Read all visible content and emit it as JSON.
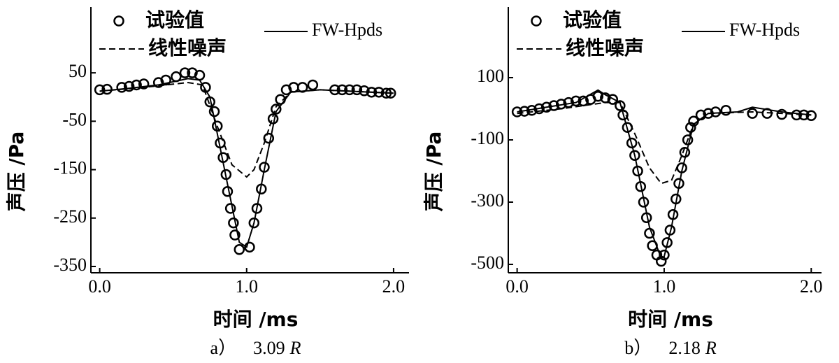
{
  "chart_data": [
    {
      "type": "line",
      "caption": "a）",
      "title": "3.09",
      "title_unit": "R",
      "xlabel": "时间 /ms",
      "ylabel": "声压 /Pa",
      "xlim": [
        -0.06,
        2.105
      ],
      "ylim": [
        -363,
        186
      ],
      "xticks": [
        {
          "value": 0,
          "label": "0.0"
        },
        {
          "value": 1,
          "label": "1.0"
        },
        {
          "value": 2,
          "label": "2.0"
        }
      ],
      "yticks": [
        50,
        -50,
        -150,
        -250,
        -350
      ],
      "series": [
        {
          "name": "试验值",
          "style": "marker",
          "color": "#000",
          "x": [
            0.0,
            0.05,
            0.15,
            0.2,
            0.25,
            0.3,
            0.4,
            0.45,
            0.52,
            0.58,
            0.63,
            0.68,
            0.72,
            0.75,
            0.78,
            0.8,
            0.82,
            0.84,
            0.86,
            0.87,
            0.89,
            0.91,
            0.92,
            0.95,
            1.02,
            1.05,
            1.07,
            1.1,
            1.12,
            1.15,
            1.18,
            1.2,
            1.23,
            1.27,
            1.32,
            1.38,
            1.45,
            1.6,
            1.65,
            1.7,
            1.75,
            1.8,
            1.85,
            1.9,
            1.95,
            1.98
          ],
          "values": [
            15,
            16,
            20,
            22,
            25,
            27,
            30,
            35,
            42,
            50,
            50,
            45,
            20,
            -10,
            -30,
            -60,
            -95,
            -125,
            -160,
            -195,
            -230,
            -260,
            -285,
            -315,
            -310,
            -260,
            -230,
            -190,
            -145,
            -85,
            -45,
            -25,
            -5,
            15,
            20,
            20,
            25,
            15,
            15,
            15,
            15,
            13,
            10,
            10,
            8,
            8
          ]
        },
        {
          "name": "FW-Hpds",
          "style": "solid",
          "color": "#000",
          "x": [
            0,
            0.2,
            0.4,
            0.6,
            0.68,
            0.75,
            0.85,
            0.95,
            1.0,
            1.05,
            1.12,
            1.2,
            1.3,
            1.5,
            1.7,
            2.0
          ],
          "values": [
            12,
            18,
            25,
            38,
            35,
            0,
            -150,
            -300,
            -310,
            -260,
            -150,
            -30,
            10,
            15,
            12,
            8
          ]
        },
        {
          "name": "线性噪声",
          "style": "dashed",
          "color": "#000",
          "x": [
            0,
            0.3,
            0.6,
            0.7,
            0.8,
            0.9,
            1.0,
            1.05,
            1.12,
            1.2,
            1.3,
            1.5,
            2.0
          ],
          "values": [
            12,
            20,
            30,
            25,
            -60,
            -140,
            -165,
            -150,
            -95,
            -20,
            10,
            15,
            8
          ]
        }
      ]
    },
    {
      "type": "line",
      "caption": "b）",
      "title": "2.18",
      "title_unit": "R",
      "xlabel": "时间 /ms",
      "ylabel": "声压 /Pa",
      "xlim": [
        -0.06,
        2.07
      ],
      "ylim": [
        -527,
        327
      ],
      "xticks": [
        {
          "value": 0,
          "label": "0.0"
        },
        {
          "value": 1,
          "label": "1.0"
        },
        {
          "value": 2,
          "label": "2.0"
        }
      ],
      "yticks": [
        100,
        -100,
        -300,
        -500
      ],
      "series": [
        {
          "name": "试验值",
          "style": "marker",
          "color": "#000",
          "x": [
            0,
            0.05,
            0.1,
            0.15,
            0.2,
            0.25,
            0.3,
            0.35,
            0.4,
            0.45,
            0.5,
            0.55,
            0.6,
            0.65,
            0.7,
            0.72,
            0.75,
            0.78,
            0.8,
            0.82,
            0.84,
            0.86,
            0.88,
            0.9,
            0.92,
            0.95,
            0.98,
            1.0,
            1.02,
            1.04,
            1.06,
            1.08,
            1.1,
            1.12,
            1.14,
            1.16,
            1.18,
            1.2,
            1.25,
            1.3,
            1.35,
            1.42,
            1.6,
            1.7,
            1.8,
            1.9,
            1.95,
            2.0
          ],
          "values": [
            -10,
            -8,
            -5,
            0,
            5,
            10,
            15,
            20,
            25,
            25,
            30,
            40,
            35,
            30,
            10,
            -20,
            -60,
            -110,
            -150,
            -200,
            -250,
            -300,
            -350,
            -400,
            -440,
            -470,
            -490,
            -470,
            -430,
            -390,
            -340,
            -290,
            -240,
            -190,
            -140,
            -100,
            -60,
            -40,
            -20,
            -15,
            -10,
            -5,
            -15,
            -15,
            -18,
            -20,
            -20,
            -22
          ]
        },
        {
          "name": "FW-Hpds",
          "style": "solid",
          "color": "#000",
          "x": [
            0,
            0.2,
            0.4,
            0.55,
            0.6,
            0.7,
            0.8,
            0.9,
            0.98,
            1.0,
            1.05,
            1.12,
            1.2,
            1.3,
            1.5,
            1.6,
            1.8,
            2.0
          ],
          "values": [
            -10,
            5,
            20,
            60,
            45,
            20,
            -150,
            -380,
            -480,
            -475,
            -380,
            -200,
            -50,
            -15,
            -10,
            5,
            -10,
            -20
          ]
        },
        {
          "name": "线性噪声",
          "style": "dashed",
          "color": "#000",
          "x": [
            0,
            0.3,
            0.6,
            0.7,
            0.8,
            0.9,
            0.98,
            1.05,
            1.12,
            1.2,
            1.3,
            1.6,
            2.0
          ],
          "values": [
            -15,
            0,
            20,
            20,
            -80,
            -190,
            -240,
            -230,
            -150,
            -50,
            -15,
            -10,
            -20
          ]
        }
      ]
    }
  ]
}
